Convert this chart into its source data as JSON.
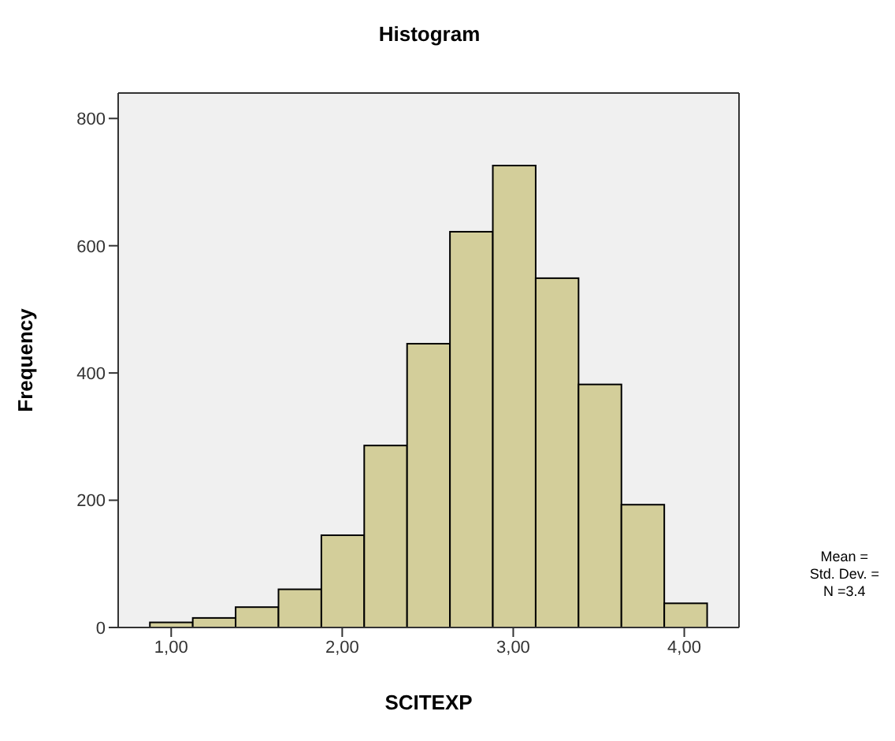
{
  "chart_data": {
    "type": "histogram",
    "title": "Histogram",
    "xlabel": "SCITEXP",
    "ylabel": "Frequency",
    "bins": [
      0.875,
      1.125,
      1.375,
      1.625,
      1.875,
      2.125,
      2.375,
      2.625,
      2.875,
      3.125,
      3.375,
      3.625,
      3.875,
      4.125
    ],
    "values": [
      8,
      15,
      32,
      60,
      145,
      286,
      446,
      622,
      726,
      549,
      382,
      193,
      38
    ],
    "color": "#d3ce9a",
    "xlim": [
      0.69,
      4.32
    ],
    "xticks": [
      {
        "value": 1,
        "label": "1,00"
      },
      {
        "value": 2,
        "label": "2,00"
      },
      {
        "value": 3,
        "label": "3,00"
      },
      {
        "value": 4,
        "label": "4,00"
      }
    ],
    "ylim": [
      0,
      840
    ],
    "yticks": [
      0,
      200,
      400,
      600,
      800
    ],
    "annotations": [
      "Mean =",
      "Std. Dev. =",
      "N =3.4"
    ],
    "grid": false
  }
}
